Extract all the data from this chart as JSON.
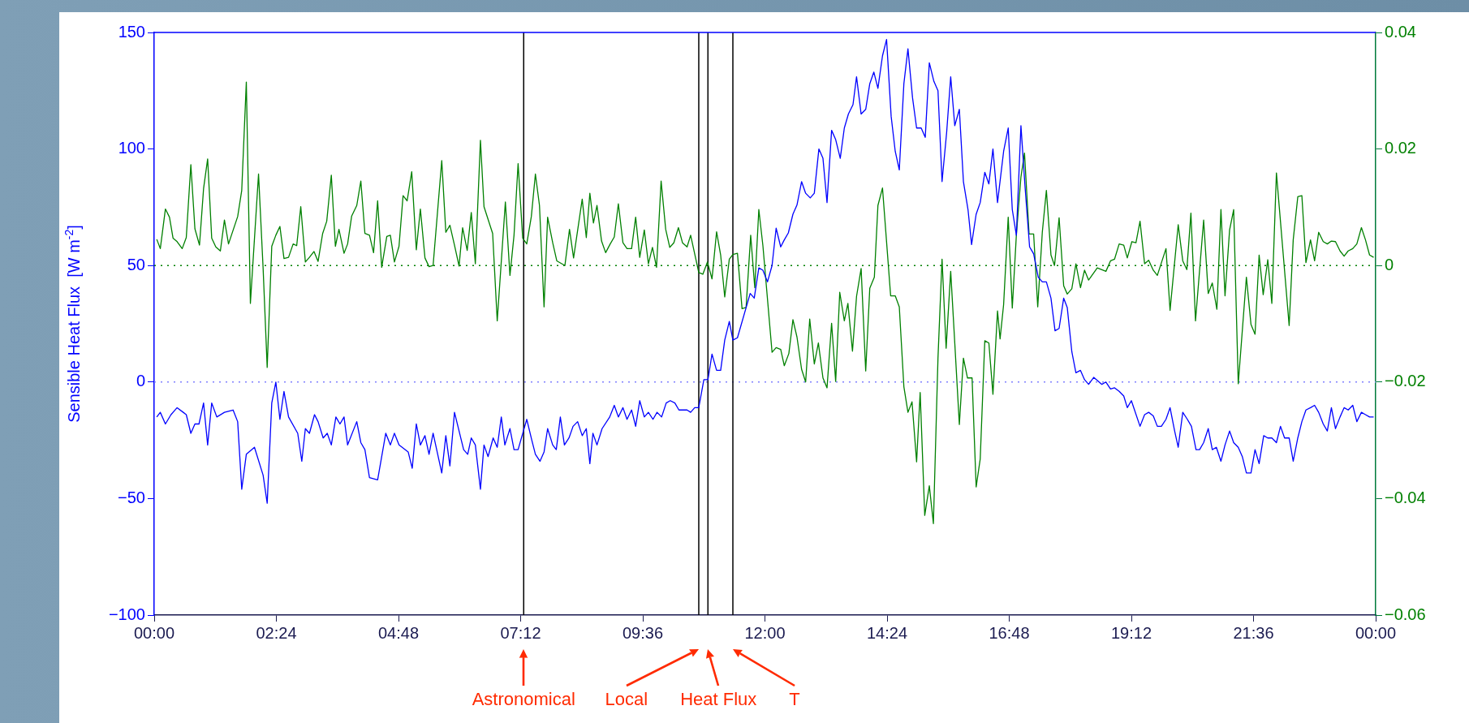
{
  "chart_data": {
    "type": "line",
    "ylabel": "Sensible Heat Flux  [W m$^{-2}$]",
    "xlim": [
      0,
      24
    ],
    "xticks": [
      {
        "value": 0,
        "label": "00:00"
      },
      {
        "value": 2.4,
        "label": "02:24"
      },
      {
        "value": 4.8,
        "label": "04:48"
      },
      {
        "value": 7.2,
        "label": "07:12"
      },
      {
        "value": 9.6,
        "label": "09:36"
      },
      {
        "value": 12,
        "label": "12:00"
      },
      {
        "value": 14.4,
        "label": "14:24"
      },
      {
        "value": 16.8,
        "label": "16:48"
      },
      {
        "value": 19.2,
        "label": "19:12"
      },
      {
        "value": 21.6,
        "label": "21:36"
      },
      {
        "value": 24,
        "label": "00:00"
      }
    ],
    "ylim": [
      -100,
      150
    ],
    "yticks": [
      -100,
      -50,
      0,
      50,
      100,
      150
    ],
    "y2lim": [
      -0.06,
      0.04
    ],
    "y2ticks": [
      -0.06,
      -0.04,
      -0.02,
      0,
      0.02,
      0.04
    ],
    "grid": false,
    "legend": false,
    "marker": "none",
    "series": [
      {
        "color": "#0000ff",
        "x": [
          0.05,
          0.12,
          0.22,
          0.33,
          0.45,
          0.57,
          0.63,
          0.72,
          0.8,
          0.88,
          0.97,
          1.05,
          1.13,
          1.23,
          1.38,
          1.55,
          1.64,
          1.72,
          1.81,
          1.97,
          2.14,
          2.22,
          2.31,
          2.39,
          2.47,
          2.55,
          2.64,
          2.82,
          2.9,
          2.97,
          3.05,
          3.15,
          3.22,
          3.32,
          3.4,
          3.48,
          3.57,
          3.65,
          3.73,
          3.8,
          3.98,
          4.06,
          4.14,
          4.23,
          4.39,
          4.55,
          4.64,
          4.72,
          4.81,
          4.99,
          5.07,
          5.15,
          5.23,
          5.32,
          5.4,
          5.48,
          5.65,
          5.73,
          5.81,
          5.9,
          6.08,
          6.16,
          6.23,
          6.31,
          6.41,
          6.48,
          6.56,
          6.66,
          6.74,
          6.82,
          6.89,
          6.99,
          7.07,
          7.15,
          7.32,
          7.42,
          7.49,
          7.58,
          7.66,
          7.73,
          7.83,
          7.9,
          7.98,
          8.06,
          8.15,
          8.23,
          8.32,
          8.41,
          8.49,
          8.56,
          8.62,
          8.7,
          8.8,
          8.95,
          9.04,
          9.12,
          9.21,
          9.29,
          9.38,
          9.46,
          9.54,
          9.63,
          9.71,
          9.8,
          9.88,
          9.97,
          10.06,
          10.14,
          10.23,
          10.31,
          10.47,
          10.54,
          10.62,
          10.7,
          10.8,
          10.88,
          10.96,
          11.05,
          11.13,
          11.21,
          11.3,
          11.37,
          11.46,
          11.71,
          11.79,
          11.88,
          11.96,
          12.05,
          12.14,
          12.22,
          12.31,
          12.38,
          12.46,
          12.55,
          12.63,
          12.72,
          12.8,
          12.89,
          12.97,
          13.06,
          13.14,
          13.22,
          13.31,
          13.39,
          13.48,
          13.56,
          13.64,
          13.73,
          13.8,
          13.89,
          13.98,
          14.06,
          14.14,
          14.22,
          14.31,
          14.39,
          14.48,
          14.56,
          14.64,
          14.73,
          14.81,
          14.9,
          14.98,
          15.07,
          15.15,
          15.23,
          15.32,
          15.4,
          15.48,
          15.57,
          15.65,
          15.73,
          15.82,
          15.9,
          15.99,
          16.06,
          16.15,
          16.23,
          16.32,
          16.4,
          16.48,
          16.57,
          16.69,
          16.78,
          16.86,
          16.94,
          17.03,
          17.11,
          17.2,
          17.28,
          17.37,
          17.45,
          17.53,
          17.62,
          17.7,
          17.78,
          17.87,
          17.94,
          18.03,
          18.11,
          18.2,
          18.28,
          18.36,
          18.46,
          18.62,
          18.7,
          18.79,
          18.87,
          18.96,
          19.05,
          19.12,
          19.2,
          19.37,
          19.46,
          19.54,
          19.63,
          19.71,
          19.79,
          19.88,
          19.96,
          20.05,
          20.12,
          20.21,
          20.3,
          20.38,
          20.47,
          20.54,
          20.62,
          20.71,
          20.79,
          20.87,
          20.96,
          21.04,
          21.13,
          21.21,
          21.3,
          21.38,
          21.46,
          21.55,
          21.63,
          21.71,
          21.8,
          21.88,
          21.96,
          22.05,
          22.13,
          22.21,
          22.3,
          22.38,
          22.47,
          22.55,
          22.63,
          22.72,
          22.8,
          22.88,
          22.97,
          23.05,
          23.13,
          23.21,
          23.3,
          23.38,
          23.46,
          23.55,
          23.63,
          23.72,
          23.8,
          23.88,
          23.96
        ],
        "values": [
          -15,
          -13,
          -18,
          -14,
          -11,
          -13,
          -14,
          -22,
          -18,
          -18,
          -9,
          -27,
          -9,
          -15,
          -13,
          -12,
          -17,
          -46,
          -31,
          -28,
          -40,
          -52,
          -9,
          0,
          -16,
          -4,
          -15,
          -22,
          -34,
          -20,
          -22,
          -14,
          -17,
          -24,
          -22,
          -27,
          -15,
          -18,
          -15,
          -27,
          -17,
          -26,
          -29,
          -41,
          -42,
          -22,
          -27,
          -22,
          -27,
          -30,
          -37,
          -18,
          -27,
          -23,
          -31,
          -22,
          -39,
          -23,
          -36,
          -13,
          -29,
          -31,
          -24,
          -27,
          -46,
          -27,
          -32,
          -24,
          -28,
          -15,
          -27,
          -20,
          -29,
          -29,
          -16,
          -25,
          -31,
          -34,
          -30,
          -20,
          -27,
          -29,
          -15,
          -27,
          -24,
          -19,
          -17,
          -23,
          -20,
          -35,
          -22,
          -27,
          -20,
          -15,
          -10,
          -15,
          -11,
          -16,
          -12,
          -19,
          -8,
          -15,
          -13,
          -16,
          -13,
          -15,
          -9,
          -8,
          -9,
          -12,
          -12,
          -13,
          -11,
          -11,
          1,
          1,
          12,
          5,
          5,
          18,
          26,
          18,
          19,
          38,
          36,
          49,
          48,
          43,
          50,
          66,
          58,
          61,
          64,
          72,
          76,
          86,
          81,
          79,
          81,
          100,
          96,
          77,
          108,
          104,
          96,
          109,
          115,
          119,
          131,
          115,
          117,
          128,
          133,
          126,
          140,
          147,
          114,
          99,
          91,
          128,
          143,
          122,
          109,
          109,
          105,
          137,
          129,
          125,
          86,
          107,
          131,
          110,
          117,
          86,
          74,
          59,
          72,
          77,
          90,
          85,
          100,
          77,
          99,
          109,
          74,
          63,
          110,
          84,
          58,
          55,
          45,
          43,
          43,
          36,
          22,
          23,
          36,
          32,
          13,
          4,
          5,
          1,
          -1,
          2,
          -1,
          0,
          -3,
          -2.5,
          -4,
          -6,
          -11,
          -8,
          -19,
          -14,
          -13,
          -14.5,
          -19,
          -19,
          -16,
          -11,
          -21,
          -28,
          -13,
          -16,
          -19,
          -29,
          -29,
          -26,
          -20,
          -29,
          -28,
          -34,
          -27,
          -21,
          -26,
          -28,
          -32,
          -39,
          -39,
          -29,
          -35,
          -23,
          -24,
          -24,
          -26,
          -19,
          -24,
          -24,
          -34,
          -24,
          -17,
          -12,
          -11,
          -10,
          -13,
          -18,
          -21,
          -11,
          -20,
          -15,
          -11,
          -12,
          -10,
          -17,
          -13,
          -14,
          -15,
          -15
        ]
      },
      {
        "color": "#008000",
        "axis": "y2",
        "x": [
          0.05,
          0.12,
          0.22,
          0.3,
          0.37,
          0.45,
          0.55,
          0.63,
          0.72,
          0.8,
          0.89,
          0.97,
          1.05,
          1.13,
          1.21,
          1.3,
          1.38,
          1.46,
          1.64,
          1.72,
          1.81,
          1.89,
          2.05,
          2.14,
          2.22,
          2.31,
          2.39,
          2.47,
          2.55,
          2.64,
          2.73,
          2.8,
          2.88,
          2.97,
          3.05,
          3.14,
          3.22,
          3.31,
          3.39,
          3.48,
          3.56,
          3.63,
          3.73,
          3.8,
          3.88,
          3.98,
          4.06,
          4.14,
          4.23,
          4.31,
          4.39,
          4.47,
          4.57,
          4.64,
          4.72,
          4.81,
          4.89,
          4.97,
          5.06,
          5.15,
          5.23,
          5.32,
          5.4,
          5.48,
          5.65,
          5.73,
          5.81,
          5.9,
          5.99,
          6.06,
          6.15,
          6.23,
          6.31,
          6.41,
          6.48,
          6.65,
          6.74,
          6.9,
          6.99,
          7.07,
          7.15,
          7.24,
          7.32,
          7.41,
          7.49,
          7.57,
          7.66,
          7.73,
          7.83,
          7.91,
          8.07,
          8.16,
          8.24,
          8.41,
          8.49,
          8.56,
          8.63,
          8.7,
          8.79,
          8.87,
          8.96,
          9.04,
          9.12,
          9.21,
          9.29,
          9.38,
          9.46,
          9.54,
          9.63,
          9.71,
          9.79,
          9.87,
          9.96,
          10.05,
          10.13,
          10.21,
          10.3,
          10.38,
          10.47,
          10.54,
          10.7,
          10.78,
          10.87,
          10.96,
          11.05,
          11.13,
          11.21,
          11.3,
          11.37,
          11.46,
          11.55,
          11.63,
          11.72,
          11.8,
          11.88,
          11.96,
          12.14,
          12.22,
          12.31,
          12.38,
          12.47,
          12.55,
          12.63,
          12.72,
          12.8,
          12.88,
          12.97,
          13.05,
          13.14,
          13.22,
          13.31,
          13.39,
          13.47,
          13.56,
          13.63,
          13.72,
          13.8,
          13.89,
          13.98,
          14.06,
          14.15,
          14.22,
          14.31,
          14.47,
          14.56,
          14.64,
          14.73,
          14.81,
          14.89,
          14.98,
          15.05,
          15.14,
          15.23,
          15.31,
          15.4,
          15.48,
          15.56,
          15.65,
          15.73,
          15.82,
          15.9,
          15.98,
          16.07,
          16.15,
          16.23,
          16.32,
          16.4,
          16.48,
          16.57,
          16.62,
          16.69,
          16.78,
          16.86,
          16.94,
          17.03,
          17.1,
          17.19,
          17.28,
          17.36,
          17.45,
          17.53,
          17.62,
          17.69,
          17.78,
          17.87,
          17.94,
          18.03,
          18.11,
          18.2,
          18.28,
          18.36,
          18.53,
          18.7,
          18.79,
          18.87,
          18.96,
          19.05,
          19.12,
          19.21,
          19.29,
          19.37,
          19.46,
          19.54,
          19.63,
          19.71,
          19.88,
          19.96,
          20.12,
          20.21,
          20.29,
          20.37,
          20.46,
          20.62,
          20.71,
          20.79,
          20.88,
          20.96,
          21.04,
          21.13,
          21.21,
          21.3,
          21.46,
          21.55,
          21.63,
          21.71,
          21.79,
          21.88,
          21.96,
          22.05,
          22.3,
          22.38,
          22.47,
          22.55,
          22.63,
          22.72,
          22.8,
          22.88,
          22.97,
          23.05,
          23.13,
          23.21,
          23.3,
          23.38,
          23.46,
          23.55,
          23.63,
          23.72,
          23.8,
          23.88,
          23.96
        ],
        "values": [
          0.0045,
          0.0029,
          0.0097,
          0.0083,
          0.0047,
          0.0041,
          0.0029,
          0.0048,
          0.0173,
          0.0063,
          0.0035,
          0.0132,
          0.0183,
          0.0047,
          0.0032,
          0.0025,
          0.0078,
          0.0037,
          0.0084,
          0.0129,
          0.0315,
          -0.0065,
          0.0157,
          -0.0005,
          -0.0175,
          0.0033,
          0.0052,
          0.0067,
          0.0012,
          0.0014,
          0.0037,
          0.0034,
          0.0101,
          0.0006,
          0.0014,
          0.0024,
          0.0007,
          0.0055,
          0.0076,
          0.0155,
          0.0033,
          0.0062,
          0.0021,
          0.0037,
          0.0085,
          0.0103,
          0.0145,
          0.0055,
          0.0052,
          0.0022,
          0.0111,
          -0.0003,
          0.005,
          0.0052,
          0.0006,
          0.0033,
          0.012,
          0.0111,
          0.0161,
          0.0027,
          0.0097,
          0.0013,
          -0.0002,
          0,
          0.018,
          0.0057,
          0.0069,
          0.0035,
          -0.0001,
          0.0065,
          0.0026,
          0.0091,
          0.0003,
          0.0215,
          0.0101,
          0.0055,
          -0.0095,
          0.0109,
          -0.0017,
          0.0052,
          0.0175,
          0.0047,
          0.0037,
          0.0084,
          0.0157,
          0.0103,
          -0.0071,
          0.0083,
          0.0039,
          0.0008,
          0,
          0.0062,
          0.0013,
          0.0114,
          0.0048,
          0.0124,
          0.0073,
          0.0103,
          0.0042,
          0.0022,
          0.0037,
          0.0049,
          0.0106,
          0.0039,
          0.0029,
          0.0029,
          0.0083,
          0.0014,
          0.0061,
          0.0003,
          0.0031,
          -0.0003,
          0.0145,
          0.0062,
          0.0031,
          0.0039,
          0.0065,
          0.0039,
          0.0032,
          0.0052,
          -0.0012,
          -0.0015,
          0.0006,
          -0.0023,
          0.0058,
          0.0018,
          -0.0054,
          0.0011,
          0.0019,
          0.0021,
          -0.0074,
          -0.0072,
          0.0052,
          -0.0038,
          0.0096,
          0.0034,
          -0.0149,
          -0.0141,
          -0.0144,
          -0.0172,
          -0.0151,
          -0.0093,
          -0.0123,
          -0.0178,
          -0.02,
          -0.0092,
          -0.0169,
          -0.0133,
          -0.0193,
          -0.021,
          -0.0099,
          -0.0199,
          -0.0046,
          -0.0095,
          -0.0065,
          -0.0147,
          -0.0053,
          -0.0005,
          -0.0181,
          -0.0039,
          -0.002,
          0.0103,
          0.0133,
          -0.0052,
          -0.0052,
          -0.0071,
          -0.0208,
          -0.0252,
          -0.0234,
          -0.0337,
          -0.0218,
          -0.0429,
          -0.0378,
          -0.0443,
          -0.0159,
          0.0011,
          -0.0142,
          -0.001,
          -0.0133,
          -0.0273,
          -0.0159,
          -0.0193,
          -0.0193,
          -0.038,
          -0.0332,
          -0.0129,
          -0.0133,
          -0.0221,
          -0.0078,
          -0.0126,
          -0.0067,
          0.0083,
          -0.0073,
          0.0052,
          0.0152,
          0.0193,
          0.0054,
          0.0054,
          -0.0071,
          0.0057,
          0.0129,
          0.0018,
          0,
          0.0082,
          -0.0035,
          -0.0049,
          -0.004,
          0.0003,
          -0.0038,
          -0.0008,
          -0.0025,
          -0.0004,
          -0.001,
          0.0008,
          0.0011,
          0.0037,
          0.0035,
          0.0013,
          0.0041,
          0.0039,
          0.0076,
          0.0003,
          0.0009,
          -0.0008,
          -0.0017,
          0.0029,
          -0.0077,
          0.007,
          0.0008,
          -0.0007,
          0.009,
          -0.0095,
          0.0078,
          -0.0048,
          -0.003,
          -0.0075,
          0.0096,
          -0.0052,
          0.0061,
          0.0096,
          -0.0203,
          -0.002,
          -0.0101,
          -0.0118,
          0.0018,
          -0.005,
          0.001,
          -0.0065,
          0.0159,
          -0.0103,
          0.0044,
          0.0118,
          0.012,
          0.0005,
          0.0044,
          0.0008,
          0.0057,
          0.0041,
          0.0037,
          0.0042,
          0.0041,
          0.0025,
          0.0016,
          0.0025,
          0.0029,
          0.0037,
          0.0065,
          0.0044,
          0.0018,
          0.0014
        ]
      }
    ],
    "ref_lines": [
      {
        "axis": "y",
        "value": 0,
        "color": "#8080ff",
        "line_style": "dotted"
      },
      {
        "axis": "y2",
        "value": 0,
        "color": "#008000",
        "line_style": "dotted"
      },
      {
        "axis": "x",
        "value": 7.26,
        "color": "#000000"
      },
      {
        "axis": "x",
        "value": 10.7,
        "color": "#000000"
      },
      {
        "axis": "x",
        "value": 10.88,
        "color": "#000000"
      },
      {
        "axis": "x",
        "value": 11.37,
        "color": "#000000"
      }
    ],
    "annotations": [
      "Astronomical",
      "Local",
      "Heat Flux",
      "T"
    ]
  }
}
